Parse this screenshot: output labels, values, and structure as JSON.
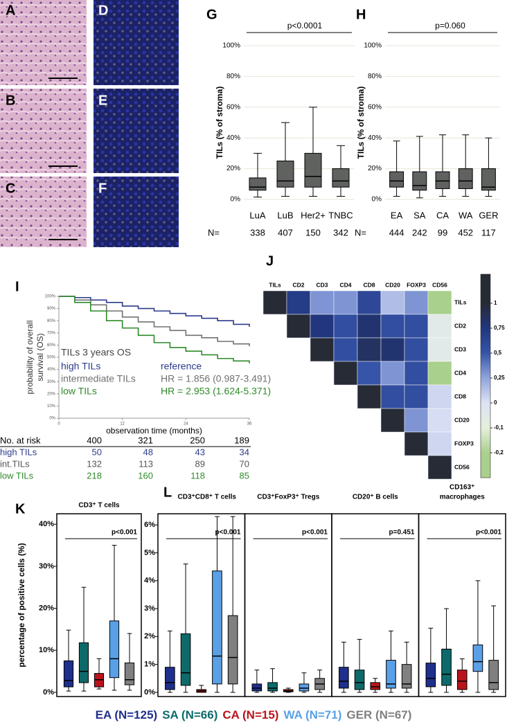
{
  "images": {
    "labels": [
      "A",
      "B",
      "C",
      "D",
      "E",
      "F"
    ]
  },
  "chart_data": [
    {
      "type": "box",
      "panel": "G",
      "ylabel": "TILs (% of stroma)",
      "annotation": "p<0.0001",
      "categories": [
        "LuA",
        "LuB",
        "Her2+",
        "TNBC"
      ],
      "n_label": "N=",
      "n": [
        338,
        407,
        150,
        342
      ],
      "boxes": [
        {
          "low": 1.5,
          "q1": 6,
          "median": 8,
          "q3": 14,
          "high": 30
        },
        {
          "low": 2,
          "q1": 8,
          "median": 12,
          "q3": 25,
          "high": 50
        },
        {
          "low": 2,
          "q1": 8,
          "median": 15,
          "q3": 30,
          "high": 60
        },
        {
          "low": 2,
          "q1": 8,
          "median": 12,
          "q3": 20,
          "high": 35
        }
      ],
      "colors": [
        "#5f625f",
        "#5f625f",
        "#5f625f",
        "#5f625f"
      ],
      "ylim": [
        0,
        100
      ],
      "yticks": [
        {
          "value": 0,
          "label": "0%"
        },
        {
          "value": 20,
          "label": "20%"
        },
        {
          "value": 40,
          "label": "40%"
        },
        {
          "value": 60,
          "label": "60%"
        },
        {
          "value": 80,
          "label": "80%"
        },
        {
          "value": 100,
          "label": "100%"
        }
      ],
      "grid": true
    },
    {
      "type": "box",
      "panel": "H",
      "ylabel": "TILs (% of stroma)",
      "annotation": "p=0.060",
      "categories": [
        "EA",
        "SA",
        "CA",
        "WA",
        "GER"
      ],
      "n_label": "N=",
      "n": [
        444,
        242,
        99,
        452,
        117
      ],
      "boxes": [
        {
          "low": 2,
          "q1": 8,
          "median": 12,
          "q3": 18,
          "high": 38
        },
        {
          "low": 1,
          "q1": 6,
          "median": 9,
          "q3": 18,
          "high": 41
        },
        {
          "low": 2,
          "q1": 7,
          "median": 12,
          "q3": 18,
          "high": 42
        },
        {
          "low": 2,
          "q1": 7,
          "median": 12,
          "q3": 20,
          "high": 42
        },
        {
          "low": 2,
          "q1": 6,
          "median": 8,
          "q3": 20,
          "high": 40
        }
      ],
      "colors": [
        "#5f625f",
        "#5f625f",
        "#5f625f",
        "#5f625f",
        "#5f625f"
      ],
      "ylim": [
        0,
        100
      ],
      "yticks": [
        {
          "value": 0,
          "label": "0%"
        },
        {
          "value": 20,
          "label": "20%"
        },
        {
          "value": 40,
          "label": "40%"
        },
        {
          "value": 60,
          "label": "60%"
        },
        {
          "value": 80,
          "label": "80%"
        },
        {
          "value": 100,
          "label": "100%"
        }
      ],
      "grid": true
    },
    {
      "type": "km",
      "panel": "I",
      "xlabel": "observation time (months)",
      "ylabel_lines": [
        "probability of overall",
        "survival (OS)"
      ],
      "legend_title": "TILs 3 years OS",
      "x": [
        0,
        3,
        6,
        9,
        12,
        15,
        18,
        21,
        24,
        27,
        30,
        33,
        36
      ],
      "series": [
        {
          "name": "high TILs",
          "color": "#2b3a8a",
          "hr": "reference",
          "values": [
            1,
            0.99,
            0.97,
            0.95,
            0.92,
            0.9,
            0.88,
            0.86,
            0.84,
            0.82,
            0.8,
            0.77,
            0.75
          ]
        },
        {
          "name": "intermediate TILs",
          "color": "#707070",
          "hr": "HR = 1.856 (0.987-3.491)",
          "values": [
            1,
            0.97,
            0.93,
            0.88,
            0.83,
            0.79,
            0.75,
            0.72,
            0.68,
            0.66,
            0.63,
            0.61,
            0.59
          ]
        },
        {
          "name": "low TILs",
          "color": "#2e8a2a",
          "hr": "HR = 2.953 (1.624-5.371)",
          "values": [
            1,
            0.95,
            0.88,
            0.8,
            0.74,
            0.68,
            0.62,
            0.58,
            0.55,
            0.52,
            0.49,
            0.47,
            0.45
          ]
        }
      ],
      "xlim": [
        0,
        36
      ],
      "xticks": [
        0,
        12,
        24,
        36
      ],
      "ylim": [
        0,
        1
      ],
      "yticks": [
        {
          "value": 0,
          "label": "0%"
        },
        {
          "value": 0.1,
          "label": "10%"
        },
        {
          "value": 0.2,
          "label": "20%"
        },
        {
          "value": 0.3,
          "label": "30%"
        },
        {
          "value": 0.4,
          "label": "40%"
        },
        {
          "value": 0.5,
          "label": "50%"
        },
        {
          "value": 0.6,
          "label": "60%"
        },
        {
          "value": 0.7,
          "label": "70%"
        },
        {
          "value": 0.8,
          "label": "80%"
        },
        {
          "value": 0.9,
          "label": "90%"
        },
        {
          "value": 1,
          "label": "100%"
        }
      ],
      "risk_table": [
        {
          "label": "No. at risk",
          "color": "#000000",
          "values": [
            400,
            321,
            250,
            189
          ]
        },
        {
          "label": "high TILs",
          "color": "#2b3a8a",
          "values": [
            50,
            48,
            43,
            34
          ]
        },
        {
          "label": "int.TILs",
          "color": "#555555",
          "values": [
            132,
            113,
            89,
            70
          ]
        },
        {
          "label": "low TILs",
          "color": "#2e8a2a",
          "values": [
            218,
            160,
            118,
            85
          ]
        }
      ]
    },
    {
      "type": "heatmap",
      "panel": "J",
      "labels": [
        "TILs",
        "CD2",
        "CD3",
        "CD4",
        "CD8",
        "CD20",
        "FOXP3",
        "CD56"
      ],
      "matrix": [
        [
          1,
          0.7,
          0.3,
          0.3,
          0.6,
          0.15,
          0.3,
          -0.2
        ],
        [
          1,
          0.75,
          0.55,
          0.8,
          0.55,
          0.55,
          -0.05
        ],
        [
          1,
          0.55,
          0.85,
          0.8,
          0.55,
          -0.05
        ],
        [
          1,
          0.5,
          0.3,
          0.55,
          -0.2
        ],
        [
          1,
          0.55,
          0.55,
          0.05
        ],
        [
          1,
          0.3,
          0.02
        ],
        [
          1,
          0.05
        ],
        [
          1
        ]
      ],
      "colorbar_ticks": [
        1,
        {
          "value": 0.75,
          "label": "0,75"
        },
        {
          "value": 0.5,
          "label": "0,5"
        },
        {
          "value": 0.25,
          "label": "0,25"
        },
        0,
        {
          "value": -0.1,
          "label": "-0,1"
        },
        {
          "value": -0.2,
          "label": "-0,2"
        }
      ],
      "colorbar_colors": [
        "#262b36",
        "#21367e",
        "#3654a8",
        "#90a4de",
        "#dde3f5",
        "#e6efdc",
        "#a9d08c"
      ]
    },
    {
      "type": "box",
      "panel": "K",
      "title_lines": [
        "CD3⁺ T cells"
      ],
      "ylabel": "percentage of positive cells (%)",
      "annotation": "p<0.001",
      "boxes": [
        {
          "low": 0.3,
          "q1": 1.3,
          "median": 2.8,
          "q3": 7.5,
          "high": 14.8
        },
        {
          "low": 0.3,
          "q1": 2.3,
          "median": 5,
          "q3": 11.8,
          "high": 25
        },
        {
          "low": 0.8,
          "q1": 1.3,
          "median": 3,
          "q3": 4.5,
          "high": 8
        },
        {
          "low": 0.5,
          "q1": 3.5,
          "median": 8,
          "q3": 17,
          "high": 35
        },
        {
          "low": 0.5,
          "q1": 1.8,
          "median": 3,
          "q3": 7,
          "high": 14
        }
      ],
      "colors": [
        "#1f2f8c",
        "#0e6a6a",
        "#b8141c",
        "#5aa0e6",
        "#808080"
      ],
      "ylim": [
        -1,
        42.5
      ],
      "yticks": [
        {
          "value": 0,
          "label": "0%"
        },
        {
          "value": 10,
          "label": "10%"
        },
        {
          "value": 20,
          "label": "20%"
        },
        {
          "value": 30,
          "label": "30%"
        },
        {
          "value": 40,
          "label": "40%"
        }
      ]
    },
    {
      "type": "box",
      "panel": "L",
      "title_lines": [
        "CD3⁺CD8⁺ T cells"
      ],
      "annotation": "p<0.001",
      "boxes": [
        {
          "low": 0,
          "q1": 0.1,
          "median": 0.35,
          "q3": 0.9,
          "high": 2.2
        },
        {
          "low": 0,
          "q1": 0.25,
          "median": 0.7,
          "q3": 2.1,
          "high": 4.6
        },
        {
          "low": 0,
          "q1": 0,
          "median": 0.05,
          "q3": 0.1,
          "high": 0.25
        },
        {
          "low": 0,
          "q1": 0.3,
          "median": 1.3,
          "q3": 4.35,
          "high": 6.3
        },
        {
          "low": 0,
          "q1": 0.3,
          "median": 1.25,
          "q3": 2.75,
          "high": 6.3
        }
      ],
      "colors": [
        "#1f2f8c",
        "#0e6a6a",
        "#b8141c",
        "#5aa0e6",
        "#808080"
      ],
      "ylim": [
        -0.15,
        6.4
      ],
      "yticks": [
        {
          "value": 0,
          "label": "0%"
        },
        {
          "value": 1,
          "label": "1%"
        },
        {
          "value": 2,
          "label": "2%"
        },
        {
          "value": 3,
          "label": "3%"
        },
        {
          "value": 4,
          "label": "4%"
        },
        {
          "value": 5,
          "label": "5%"
        },
        {
          "value": 6,
          "label": "6%"
        }
      ]
    },
    {
      "type": "box",
      "title_lines": [
        "CD3⁺FoxP3⁺ Tregs"
      ],
      "annotation": "p<0.001",
      "boxes": [
        {
          "low": 0,
          "q1": 0.05,
          "median": 0.15,
          "q3": 0.3,
          "high": 0.8
        },
        {
          "low": 0,
          "q1": 0.05,
          "median": 0.15,
          "q3": 0.35,
          "high": 0.85
        },
        {
          "low": 0,
          "q1": 0.02,
          "median": 0.05,
          "q3": 0.1,
          "high": 0.15
        },
        {
          "low": 0,
          "q1": 0.05,
          "median": 0.15,
          "q3": 0.3,
          "high": 0.7
        },
        {
          "low": 0,
          "q1": 0.1,
          "median": 0.3,
          "q3": 0.5,
          "high": 0.8
        }
      ],
      "colors": [
        "#1f2f8c",
        "#0e6a6a",
        "#b8141c",
        "#5aa0e6",
        "#808080"
      ],
      "ylim": [
        -0.15,
        6.4
      ]
    },
    {
      "type": "box",
      "title_lines": [
        "CD20⁺ B cells"
      ],
      "annotation": "p=0.451",
      "boxes": [
        {
          "low": 0,
          "q1": 0.15,
          "median": 0.4,
          "q3": 0.9,
          "high": 1.8
        },
        {
          "low": 0,
          "q1": 0.1,
          "median": 0.35,
          "q3": 0.8,
          "high": 1.9
        },
        {
          "low": 0,
          "q1": 0.1,
          "median": 0.2,
          "q3": 0.35,
          "high": 0.5
        },
        {
          "low": 0,
          "q1": 0.15,
          "median": 0.3,
          "q3": 1.15,
          "high": 2.2
        },
        {
          "low": 0,
          "q1": 0.15,
          "median": 0.3,
          "q3": 1,
          "high": 1.8
        }
      ],
      "colors": [
        "#1f2f8c",
        "#0e6a6a",
        "#b8141c",
        "#5aa0e6",
        "#808080"
      ],
      "ylim": [
        -0.15,
        6.4
      ]
    },
    {
      "type": "box",
      "title_lines": [
        "CD163⁺",
        "macrophages"
      ],
      "annotation": "p<0.001",
      "boxes": [
        {
          "low": 0,
          "q1": 0.2,
          "median": 0.5,
          "q3": 1.05,
          "high": 2.3
        },
        {
          "low": 0,
          "q1": 0.25,
          "median": 0.65,
          "q3": 1.55,
          "high": 3
        },
        {
          "low": 0,
          "q1": 0.1,
          "median": 0.4,
          "q3": 0.8,
          "high": 1.2
        },
        {
          "low": 0,
          "q1": 0.75,
          "median": 1.1,
          "q3": 1.7,
          "high": 4
        },
        {
          "low": 0,
          "q1": 0.1,
          "median": 0.35,
          "q3": 1.15,
          "high": 3.1
        }
      ],
      "colors": [
        "#1f2f8c",
        "#0e6a6a",
        "#b8141c",
        "#5aa0e6",
        "#808080"
      ],
      "ylim": [
        -0.15,
        6.4
      ]
    }
  ],
  "legend": [
    {
      "text": "EA (N=125)",
      "color": "#1f2f8c"
    },
    {
      "text": "SA (N=66)",
      "color": "#0e6a6a"
    },
    {
      "text": "CA (N=15)",
      "color": "#b8141c"
    },
    {
      "text": "WA (N=71)",
      "color": "#5aa0e6"
    },
    {
      "text": "GER (N=67)",
      "color": "#808080"
    }
  ]
}
